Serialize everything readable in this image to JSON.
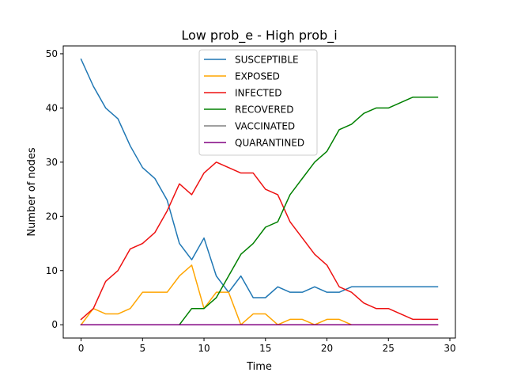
{
  "chart_data": {
    "type": "line",
    "title": "Low prob_e - High prob_i",
    "xlabel": "Time",
    "ylabel": "Number of nodes",
    "xlim": [
      -1.45,
      30.45
    ],
    "ylim": [
      -2.45,
      51.45
    ],
    "xticks": [
      0,
      5,
      10,
      15,
      20,
      25,
      30
    ],
    "yticks": [
      0,
      10,
      20,
      30,
      40,
      50
    ],
    "grid": false,
    "legend_position": "top-center",
    "x": [
      0,
      1,
      2,
      3,
      4,
      5,
      6,
      7,
      8,
      9,
      10,
      11,
      12,
      13,
      14,
      15,
      16,
      17,
      18,
      19,
      20,
      21,
      22,
      23,
      24,
      25,
      26,
      27,
      28,
      29
    ],
    "series": [
      {
        "name": "SUSCEPTIBLE",
        "color": "#1f77b4",
        "values": [
          49,
          44,
          40,
          38,
          33,
          29,
          27,
          23,
          15,
          12,
          16,
          9,
          6,
          9,
          5,
          5,
          7,
          6,
          6,
          7,
          6,
          6,
          7,
          7,
          7,
          7,
          7,
          7,
          7,
          7
        ]
      },
      {
        "name": "EXPOSED",
        "color": "#ffa500",
        "values": [
          0,
          3,
          2,
          2,
          3,
          6,
          6,
          6,
          9,
          11,
          3,
          6,
          6,
          0,
          2,
          2,
          0,
          1,
          1,
          0,
          1,
          1,
          0,
          0,
          0,
          0,
          0,
          0,
          0,
          0
        ]
      },
      {
        "name": "INFECTED",
        "color": "#ee1111",
        "values": [
          1,
          3,
          8,
          10,
          14,
          15,
          17,
          21,
          26,
          24,
          28,
          30,
          29,
          28,
          28,
          25,
          24,
          19,
          16,
          13,
          11,
          7,
          6,
          4,
          3,
          3,
          2,
          1,
          1,
          1
        ]
      },
      {
        "name": "RECOVERED",
        "color": "#008000",
        "values": [
          0,
          0,
          0,
          0,
          0,
          0,
          0,
          0,
          0,
          3,
          3,
          5,
          9,
          13,
          15,
          18,
          19,
          24,
          27,
          30,
          32,
          36,
          37,
          39,
          40,
          40,
          41,
          42,
          42,
          42
        ]
      },
      {
        "name": "VACCINATED",
        "color": "#808080",
        "values": [
          0,
          0,
          0,
          0,
          0,
          0,
          0,
          0,
          0,
          0,
          0,
          0,
          0,
          0,
          0,
          0,
          0,
          0,
          0,
          0,
          0,
          0,
          0,
          0,
          0,
          0,
          0,
          0,
          0,
          0
        ]
      },
      {
        "name": "QUARANTINED",
        "color": "#800080",
        "values": [
          0,
          0,
          0,
          0,
          0,
          0,
          0,
          0,
          0,
          0,
          0,
          0,
          0,
          0,
          0,
          0,
          0,
          0,
          0,
          0,
          0,
          0,
          0,
          0,
          0,
          0,
          0,
          0,
          0,
          0
        ]
      }
    ]
  }
}
